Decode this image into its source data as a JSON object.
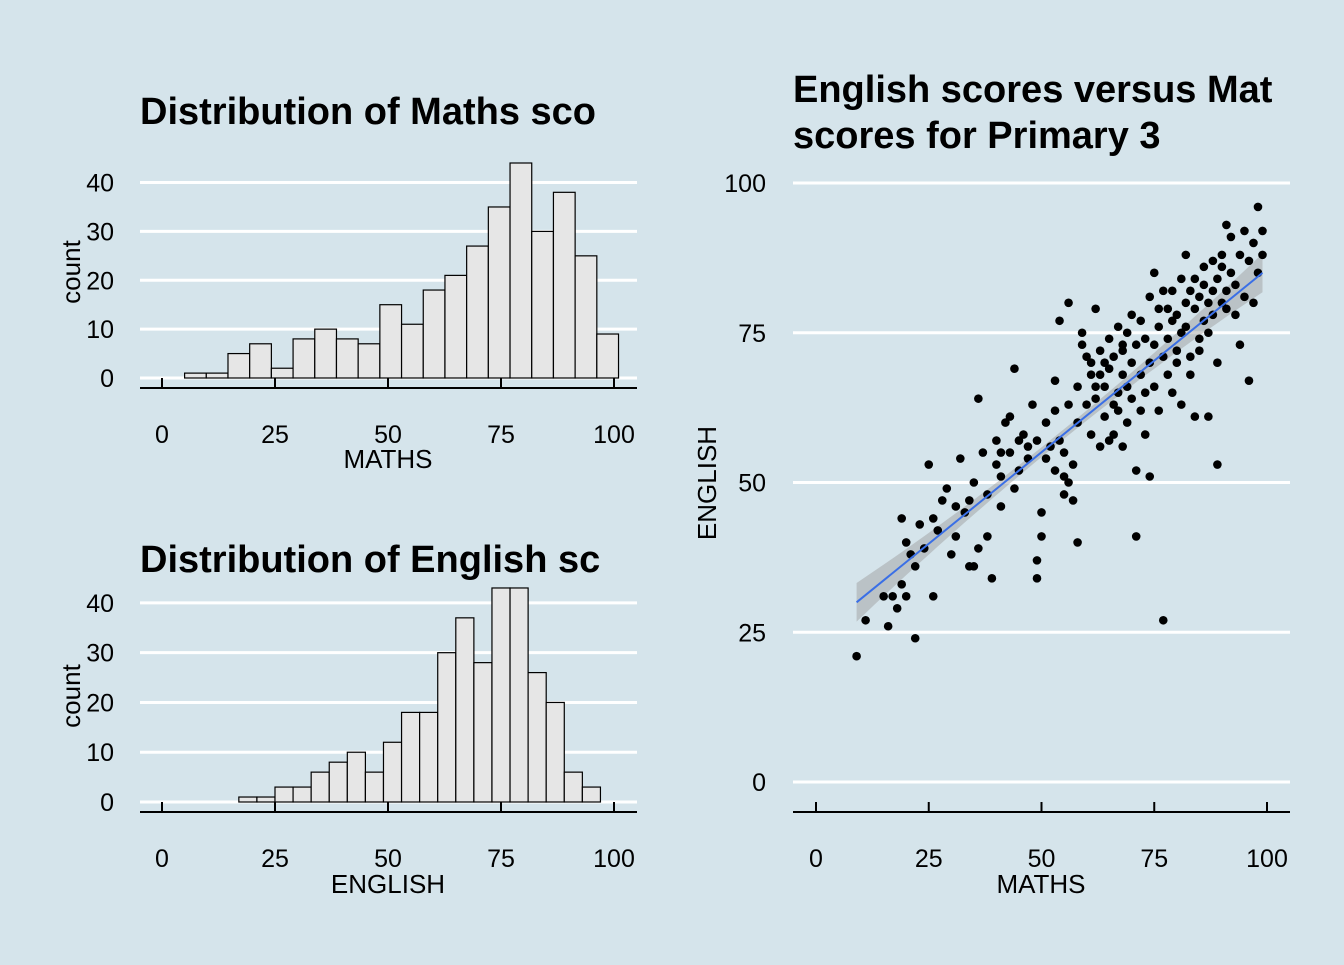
{
  "colors": {
    "background": "#d5e4eb",
    "bar_fill": "#e6e6e6",
    "bar_outline": "#000000",
    "point": "#000000",
    "fit_line": "#3a6fe6",
    "confidence_band": "#999999",
    "grid": "#ffffff"
  },
  "chart_data": [
    {
      "type": "bar",
      "subtype": "histogram",
      "title": "Distribution of Maths sco",
      "xlabel": "MATHS",
      "ylabel": "count",
      "xlim": [
        0,
        100
      ],
      "ylim": [
        0,
        44
      ],
      "x_ticks": [
        0,
        25,
        50,
        75,
        100
      ],
      "y_ticks": [
        0,
        10,
        20,
        30,
        40
      ],
      "bin_start": 5,
      "bin_width": 4.8,
      "values": [
        1,
        1,
        5,
        7,
        2,
        8,
        10,
        8,
        7,
        15,
        11,
        18,
        21,
        27,
        35,
        44,
        30,
        38,
        25,
        9
      ],
      "grid": "horizontal major",
      "legend": "none"
    },
    {
      "type": "bar",
      "subtype": "histogram",
      "title": "Distribution of English sc",
      "xlabel": "ENGLISH",
      "ylabel": "count",
      "xlim": [
        0,
        100
      ],
      "ylim": [
        0,
        44
      ],
      "x_ticks": [
        0,
        25,
        50,
        75,
        100
      ],
      "y_ticks": [
        0,
        10,
        20,
        30,
        40
      ],
      "bin_start": 17,
      "bin_width": 4,
      "values": [
        1,
        1,
        3,
        3,
        6,
        8,
        10,
        6,
        12,
        18,
        18,
        30,
        37,
        28,
        43,
        43,
        26,
        20,
        6,
        3
      ],
      "grid": "horizontal major",
      "legend": "none"
    },
    {
      "type": "scatter",
      "title": "English scores versus Mat",
      "subtitle": "scores for Primary 3",
      "xlabel": "MATHS",
      "ylabel": "ENGLISH",
      "xlim": [
        0,
        100
      ],
      "ylim": [
        0,
        100
      ],
      "x_ticks": [
        0,
        25,
        50,
        75,
        100
      ],
      "y_ticks": [
        0,
        25,
        50,
        75,
        100
      ],
      "points": [
        [
          9,
          21
        ],
        [
          11,
          27
        ],
        [
          15,
          31
        ],
        [
          16,
          26
        ],
        [
          17,
          31
        ],
        [
          18,
          29
        ],
        [
          19,
          33
        ],
        [
          19,
          44
        ],
        [
          20,
          31
        ],
        [
          20,
          40
        ],
        [
          21,
          38
        ],
        [
          22,
          24
        ],
        [
          22,
          36
        ],
        [
          23,
          43
        ],
        [
          24,
          39
        ],
        [
          25,
          53
        ],
        [
          26,
          44
        ],
        [
          27,
          42
        ],
        [
          28,
          47
        ],
        [
          29,
          49
        ],
        [
          30,
          38
        ],
        [
          31,
          41
        ],
        [
          31,
          46
        ],
        [
          32,
          54
        ],
        [
          33,
          45
        ],
        [
          34,
          47
        ],
        [
          34,
          36
        ],
        [
          35,
          36
        ],
        [
          35,
          50
        ],
        [
          36,
          39
        ],
        [
          36,
          64
        ],
        [
          37,
          55
        ],
        [
          38,
          41
        ],
        [
          38,
          48
        ],
        [
          39,
          34
        ],
        [
          40,
          53
        ],
        [
          40,
          57
        ],
        [
          41,
          51
        ],
        [
          41,
          46
        ],
        [
          42,
          60
        ],
        [
          43,
          61
        ],
        [
          43,
          55
        ],
        [
          44,
          49
        ],
        [
          44,
          69
        ],
        [
          45,
          57
        ],
        [
          45,
          52
        ],
        [
          46,
          58
        ],
        [
          47,
          56
        ],
        [
          47,
          54
        ],
        [
          48,
          63
        ],
        [
          49,
          57
        ],
        [
          49,
          34
        ],
        [
          49,
          37
        ],
        [
          50,
          45
        ],
        [
          50,
          41
        ],
        [
          51,
          54
        ],
        [
          51,
          60
        ],
        [
          52,
          56
        ],
        [
          53,
          67
        ],
        [
          53,
          52
        ],
        [
          53,
          62
        ],
        [
          54,
          57
        ],
        [
          54,
          77
        ],
        [
          55,
          48
        ],
        [
          55,
          51
        ],
        [
          55,
          55
        ],
        [
          56,
          63
        ],
        [
          56,
          80
        ],
        [
          56,
          50
        ],
        [
          57,
          53
        ],
        [
          57,
          47
        ],
        [
          58,
          66
        ],
        [
          58,
          40
        ],
        [
          59,
          75
        ],
        [
          59,
          73
        ],
        [
          60,
          71
        ],
        [
          60,
          63
        ],
        [
          61,
          68
        ],
        [
          61,
          70
        ],
        [
          61,
          58
        ],
        [
          62,
          66
        ],
        [
          62,
          64
        ],
        [
          62,
          79
        ],
        [
          63,
          72
        ],
        [
          63,
          56
        ],
        [
          63,
          68
        ],
        [
          64,
          70
        ],
        [
          64,
          61
        ],
        [
          64,
          66
        ],
        [
          65,
          74
        ],
        [
          65,
          69
        ],
        [
          65,
          57
        ],
        [
          66,
          63
        ],
        [
          66,
          71
        ],
        [
          66,
          58
        ],
        [
          67,
          76
        ],
        [
          67,
          65
        ],
        [
          67,
          62
        ],
        [
          68,
          68
        ],
        [
          68,
          72
        ],
        [
          68,
          56
        ],
        [
          69,
          66
        ],
        [
          69,
          75
        ],
        [
          69,
          60
        ],
        [
          70,
          78
        ],
        [
          70,
          70
        ],
        [
          70,
          64
        ],
        [
          71,
          41
        ],
        [
          71,
          73
        ],
        [
          71,
          52
        ],
        [
          72,
          68
        ],
        [
          72,
          62
        ],
        [
          72,
          77
        ],
        [
          73,
          74
        ],
        [
          73,
          65
        ],
        [
          73,
          58
        ],
        [
          74,
          81
        ],
        [
          74,
          70
        ],
        [
          74,
          51
        ],
        [
          75,
          85
        ],
        [
          75,
          73
        ],
        [
          75,
          66
        ],
        [
          76,
          79
        ],
        [
          76,
          76
        ],
        [
          76,
          62
        ],
        [
          77,
          27
        ],
        [
          77,
          82
        ],
        [
          77,
          71
        ],
        [
          78,
          74
        ],
        [
          78,
          68
        ],
        [
          78,
          79
        ],
        [
          79,
          65
        ],
        [
          79,
          77
        ],
        [
          79,
          82
        ],
        [
          80,
          72
        ],
        [
          80,
          78
        ],
        [
          80,
          70
        ],
        [
          81,
          84
        ],
        [
          81,
          75
        ],
        [
          81,
          63
        ],
        [
          82,
          80
        ],
        [
          82,
          76
        ],
        [
          83,
          71
        ],
        [
          83,
          82
        ],
        [
          83,
          68
        ],
        [
          84,
          79
        ],
        [
          84,
          84
        ],
        [
          84,
          61
        ],
        [
          85,
          74
        ],
        [
          85,
          81
        ],
        [
          85,
          72
        ],
        [
          86,
          77
        ],
        [
          86,
          83
        ],
        [
          86,
          86
        ],
        [
          87,
          80
        ],
        [
          87,
          75
        ],
        [
          87,
          61
        ],
        [
          88,
          82
        ],
        [
          88,
          87
        ],
        [
          88,
          78
        ],
        [
          89,
          84
        ],
        [
          89,
          70
        ],
        [
          89,
          53
        ],
        [
          90,
          86
        ],
        [
          90,
          80
        ],
        [
          90,
          88
        ],
        [
          91,
          82
        ],
        [
          91,
          79
        ],
        [
          92,
          91
        ],
        [
          92,
          85
        ],
        [
          93,
          78
        ],
        [
          93,
          83
        ],
        [
          94,
          88
        ],
        [
          94,
          73
        ],
        [
          95,
          92
        ],
        [
          95,
          81
        ],
        [
          96,
          67
        ],
        [
          96,
          87
        ],
        [
          97,
          80
        ],
        [
          97,
          90
        ],
        [
          98,
          85
        ],
        [
          98,
          96
        ],
        [
          99,
          92
        ],
        [
          99,
          88
        ],
        [
          26,
          31
        ],
        [
          41,
          55
        ],
        [
          58,
          60
        ],
        [
          68,
          73
        ],
        [
          82,
          88
        ],
        [
          91,
          93
        ]
      ],
      "fit_line": [
        [
          9,
          30
        ],
        [
          99,
          85
        ]
      ],
      "grid": "horizontal major",
      "legend": "none"
    }
  ]
}
